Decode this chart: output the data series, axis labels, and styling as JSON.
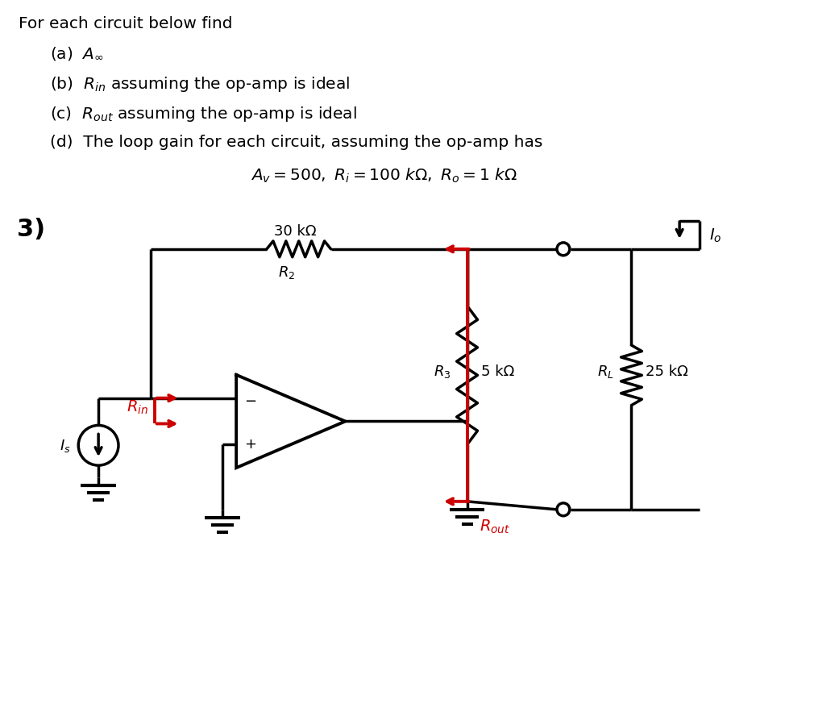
{
  "bg_color": "#ffffff",
  "black": "#000000",
  "red": "#cc0000",
  "title": "For each circuit below find",
  "line_a": "(a)  $A_{\\infty}$",
  "line_b": "(b)  $R_{in}$ assuming the op-amp is ideal",
  "line_c": "(c)  $R_{out}$ assuming the op-amp is ideal",
  "line_d": "(d)  The loop gain for each circuit, assuming the op-amp has",
  "equation": "$A_v = 500,\\ R_i = 100\\ k\\Omega,\\ R_o = 1\\ k\\Omega$",
  "label_3": "3)",
  "R2_top": "30 kΩ",
  "R2_bot": "$R_2$",
  "R3_left": "$R_3$",
  "R3_right": "5 kΩ",
  "RL_left": "$R_L$",
  "RL_right": "25 kΩ",
  "Rin": "$R_{in}$",
  "Rout": "$R_{out}$",
  "Is": "$I_s$",
  "Io": "$I_o$"
}
